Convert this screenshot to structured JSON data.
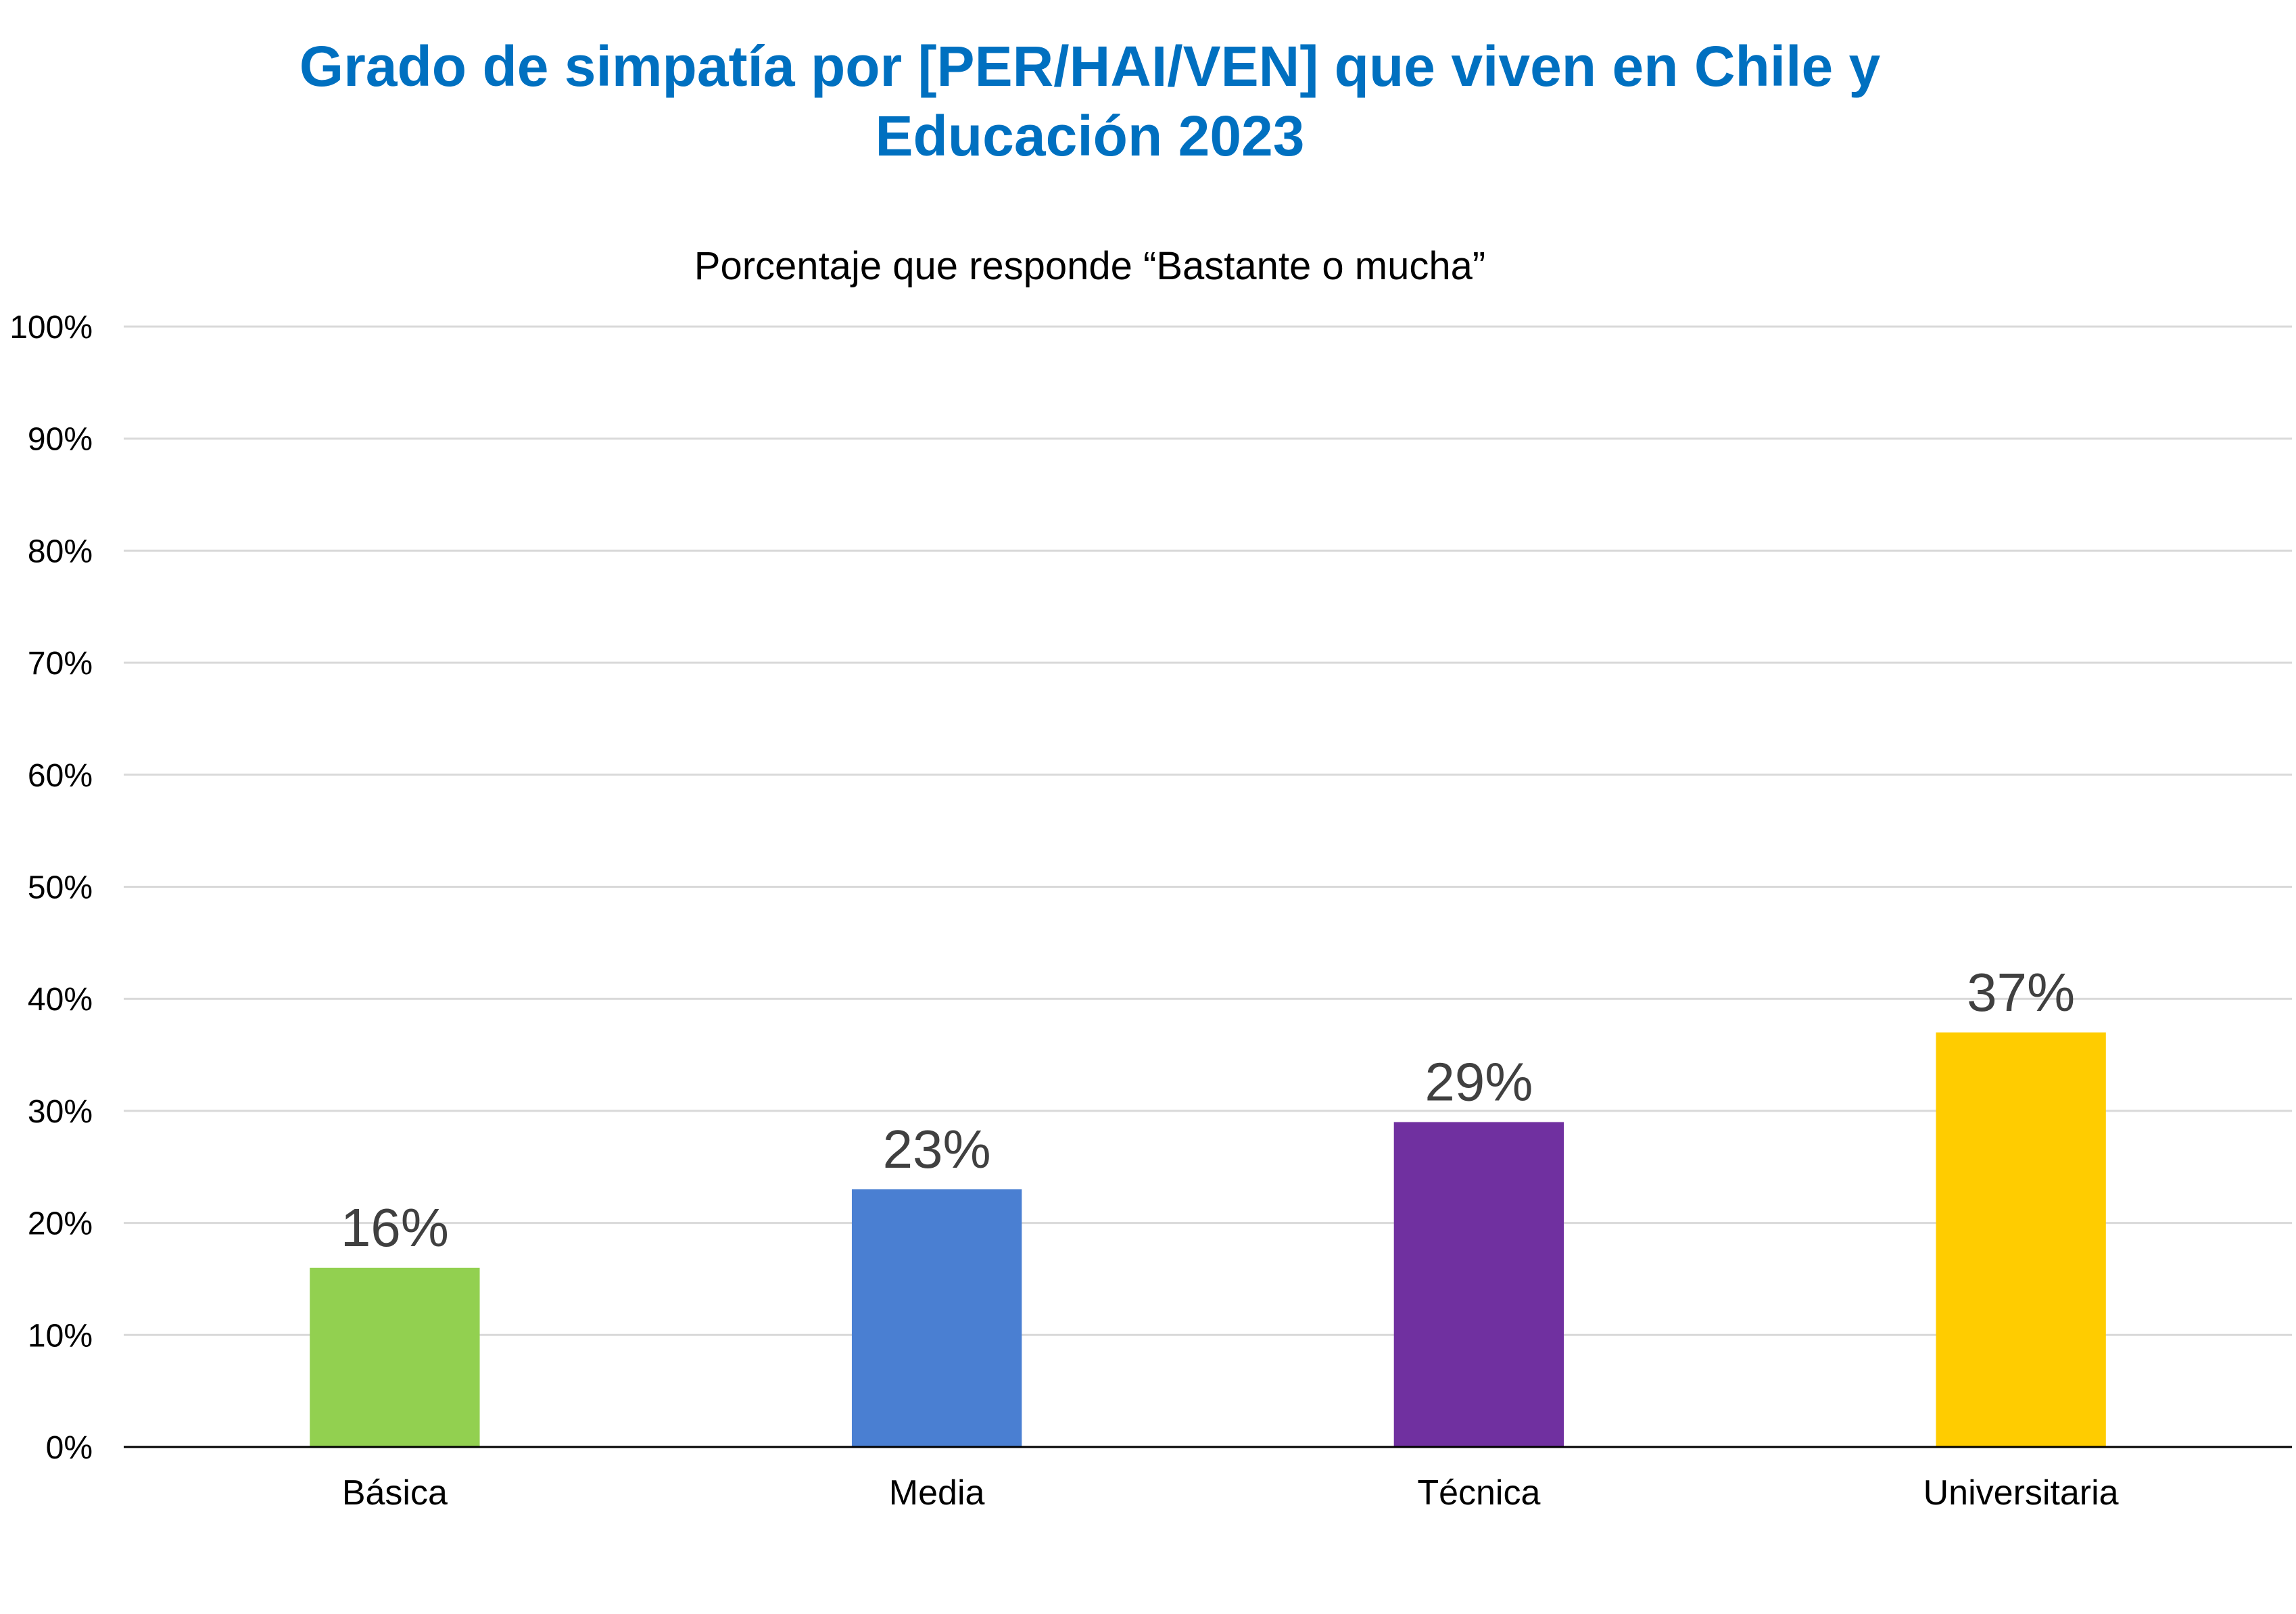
{
  "chart_data": {
    "type": "bar",
    "title_lines": [
      "Grado de simpatía por [PER/HAI/VEN] que viven en Chile y",
      "Educación 2023"
    ],
    "subtitle": "Porcentaje que responde “Bastante o mucha”",
    "categories": [
      "Básica",
      "Media",
      "Técnica",
      "Universitaria"
    ],
    "values": [
      16,
      23,
      29,
      37
    ],
    "data_labels": [
      "16%",
      "23%",
      "29%",
      "37%"
    ],
    "bar_colors": [
      "#92D050",
      "#4A7FD2",
      "#7030A0",
      "#FFCC00"
    ],
    "ylim": [
      0,
      100
    ],
    "yticks": [
      0,
      10,
      20,
      30,
      40,
      50,
      60,
      70,
      80,
      90,
      100
    ],
    "ytick_labels": [
      "0%",
      "10%",
      "20%",
      "30%",
      "40%",
      "50%",
      "60%",
      "70%",
      "80%",
      "90%",
      "100%"
    ],
    "xlabel": "",
    "ylabel": "",
    "grid": true,
    "legend": "none",
    "colors": {
      "title": "#0070C0",
      "text": "#000000",
      "data_label": "#404040",
      "grid": "#D9D9D9",
      "axis": "#000000"
    }
  }
}
